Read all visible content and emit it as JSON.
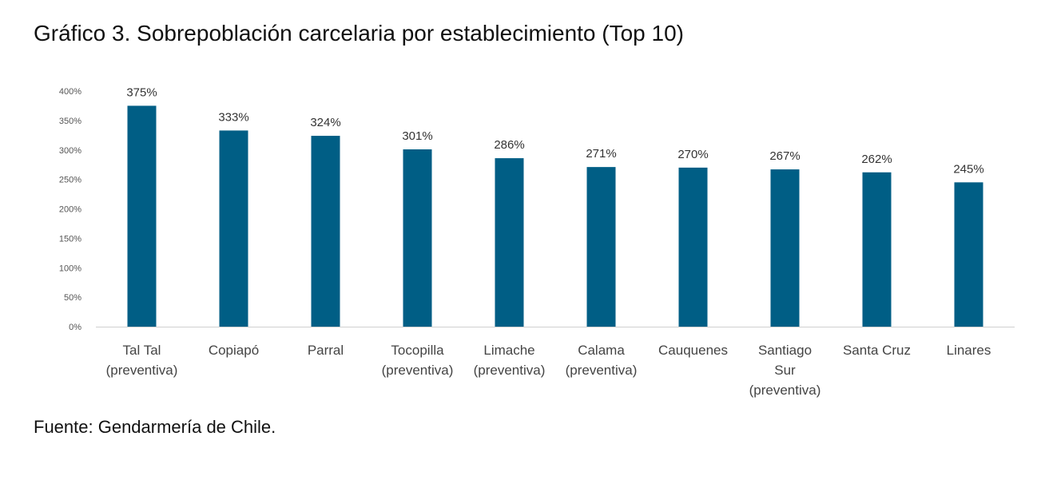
{
  "figure": {
    "title": "Gráfico 3. Sobrepoblación carcelaria por establecimiento (Top 10)",
    "source": "Fuente: Gendarmería de Chile."
  },
  "colors": {
    "bar": "#005E85",
    "axis": "#D0D0D0"
  },
  "chart_data": {
    "type": "bar",
    "title": "",
    "xlabel": "",
    "ylabel": "",
    "ylim": [
      0,
      400
    ],
    "yticks": [
      0,
      50,
      100,
      150,
      200,
      250,
      300,
      350,
      400
    ],
    "ytick_labels": [
      "0%",
      "50%",
      "100%",
      "150%",
      "200%",
      "250%",
      "300%",
      "350%",
      "400%"
    ],
    "grid": false,
    "legend": "none",
    "categories": [
      [
        "Tal Tal",
        "(preventiva)"
      ],
      [
        "Copiapó"
      ],
      [
        "Parral"
      ],
      [
        "Tocopilla",
        "(preventiva)"
      ],
      [
        "Limache",
        "(preventiva)"
      ],
      [
        "Calama",
        "(preventiva)"
      ],
      [
        "Cauquenes"
      ],
      [
        "Santiago",
        "Sur",
        "(preventiva)"
      ],
      [
        "Santa Cruz"
      ],
      [
        "Linares"
      ]
    ],
    "values": [
      375,
      333,
      324,
      301,
      286,
      271,
      270,
      267,
      262,
      245
    ],
    "data_labels": [
      "375%",
      "333%",
      "324%",
      "301%",
      "286%",
      "271%",
      "270%",
      "267%",
      "262%",
      "245%"
    ]
  }
}
